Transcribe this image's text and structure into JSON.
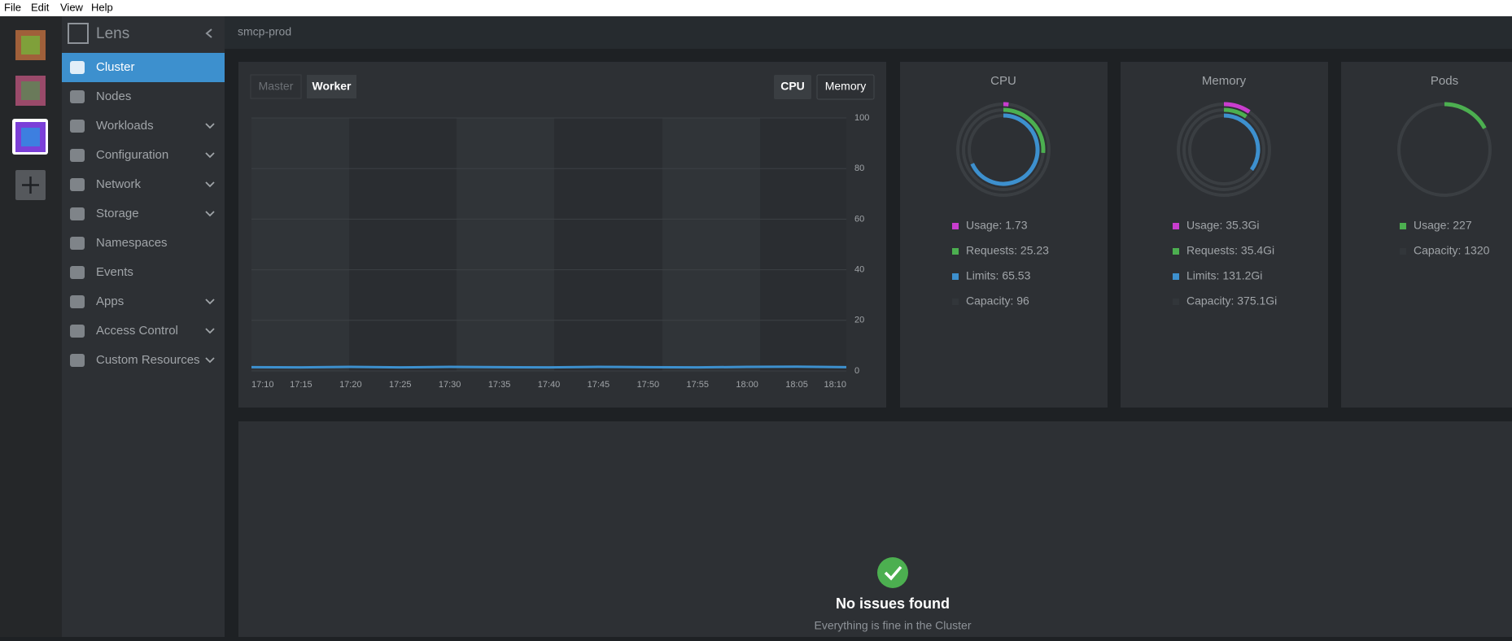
{
  "menu": [
    "File",
    "Edit",
    "View",
    "Help"
  ],
  "sidebar": {
    "title": "Lens",
    "items": [
      {
        "label": "Cluster",
        "active": true,
        "expandable": false
      },
      {
        "label": "Nodes",
        "expandable": false
      },
      {
        "label": "Workloads",
        "expandable": true
      },
      {
        "label": "Configuration",
        "expandable": true
      },
      {
        "label": "Network",
        "expandable": true
      },
      {
        "label": "Storage",
        "expandable": true
      },
      {
        "label": "Namespaces",
        "expandable": false
      },
      {
        "label": "Events",
        "expandable": false
      },
      {
        "label": "Apps",
        "expandable": true
      },
      {
        "label": "Access Control",
        "expandable": true
      },
      {
        "label": "Custom Resources",
        "expandable": true
      }
    ]
  },
  "header": {
    "cluster": "smcp-prod"
  },
  "tabs": {
    "nodes": [
      "Master",
      "Worker"
    ],
    "active_node": 1,
    "metrics": [
      "CPU",
      "Memory"
    ],
    "active_metric": 0
  },
  "chart_data": {
    "type": "line",
    "categories": [
      "17:10",
      "17:15",
      "17:20",
      "17:25",
      "17:30",
      "17:35",
      "17:40",
      "17:45",
      "17:50",
      "17:55",
      "18:00",
      "18:05",
      "18:10"
    ],
    "series": [
      {
        "color": "#3d90ce",
        "values": [
          1.5,
          1.4,
          1.6,
          1.4,
          1.6,
          1.5,
          1.4,
          1.6,
          1.5,
          1.4,
          1.6,
          1.7,
          1.5
        ]
      }
    ],
    "ylim": [
      0,
      100
    ],
    "yticks": [
      0,
      20,
      40,
      60,
      80,
      100
    ],
    "grid": true
  },
  "panels": [
    {
      "title": "CPU",
      "items": [
        {
          "label": "Usage: 1.73",
          "value": 1.73,
          "color": "#c93dce"
        },
        {
          "label": "Requests: 25.23",
          "value": 25.23,
          "color": "#4caf50"
        },
        {
          "label": "Limits: 65.53",
          "value": 65.53,
          "color": "#3d90ce"
        },
        {
          "label": "Capacity: 96",
          "value": 96,
          "color": "#32363a"
        }
      ]
    },
    {
      "title": "Memory",
      "items": [
        {
          "label": "Usage: 35.3Gi",
          "value": 35.3,
          "color": "#c93dce"
        },
        {
          "label": "Requests: 35.4Gi",
          "value": 35.4,
          "color": "#4caf50"
        },
        {
          "label": "Limits: 131.2Gi",
          "value": 131.2,
          "color": "#3d90ce"
        },
        {
          "label": "Capacity: 375.1Gi",
          "value": 375.1,
          "color": "#32363a"
        }
      ]
    },
    {
      "title": "Pods",
      "items": [
        {
          "label": "Usage: 227",
          "value": 227,
          "color": "#4caf50"
        },
        {
          "label": "Capacity: 1320",
          "value": 1320,
          "color": "#32363a"
        }
      ]
    }
  ],
  "status": {
    "title": "No issues found",
    "message": "Everything is fine in the Cluster"
  }
}
